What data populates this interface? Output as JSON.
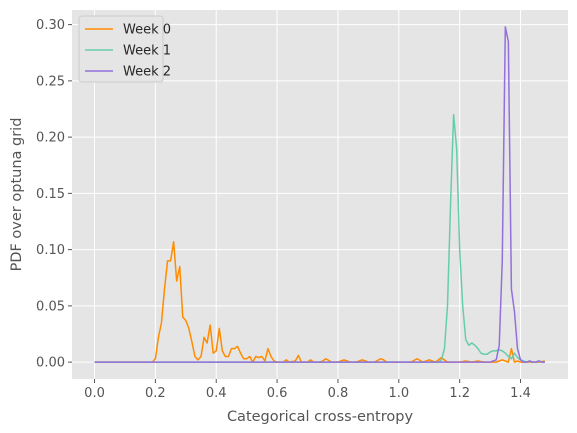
{
  "chart_data": {
    "type": "line",
    "title": "",
    "xlabel": "Categorical cross-entropy",
    "ylabel": "PDF over optuna grid",
    "xlim": [
      -0.074,
      1.556
    ],
    "ylim": [
      -0.015,
      0.313
    ],
    "xticks": [
      "0.0",
      "0.2",
      "0.4",
      "0.6",
      "0.8",
      "1.0",
      "1.2",
      "1.4"
    ],
    "yticks": [
      "0.00",
      "0.05",
      "0.10",
      "0.15",
      "0.20",
      "0.25",
      "0.30"
    ],
    "grid": true,
    "legend_position": "top-left",
    "background": "#e5e5e5",
    "series": [
      {
        "name": "Week 0",
        "color": "#ff8c00",
        "x": [
          0.0,
          0.19,
          0.2,
          0.21,
          0.22,
          0.23,
          0.24,
          0.25,
          0.26,
          0.27,
          0.28,
          0.29,
          0.3,
          0.31,
          0.32,
          0.33,
          0.34,
          0.35,
          0.36,
          0.37,
          0.38,
          0.39,
          0.4,
          0.41,
          0.42,
          0.43,
          0.44,
          0.45,
          0.46,
          0.47,
          0.48,
          0.49,
          0.5,
          0.51,
          0.52,
          0.53,
          0.54,
          0.55,
          0.56,
          0.57,
          0.58,
          0.59,
          0.6,
          0.62,
          0.63,
          0.64,
          0.66,
          0.67,
          0.68,
          0.7,
          0.71,
          0.72,
          0.74,
          0.75,
          0.76,
          0.78,
          0.8,
          0.82,
          0.84,
          0.86,
          0.88,
          0.9,
          0.92,
          0.94,
          0.95,
          0.96,
          0.98,
          1.0,
          1.02,
          1.04,
          1.06,
          1.08,
          1.1,
          1.12,
          1.14,
          1.16,
          1.18,
          1.2,
          1.22,
          1.24,
          1.26,
          1.28,
          1.3,
          1.32,
          1.34,
          1.35,
          1.36,
          1.37,
          1.38,
          1.39,
          1.4,
          1.42,
          1.44,
          1.46,
          1.48
        ],
        "values": [
          0.0,
          0.0,
          0.003,
          0.022,
          0.035,
          0.065,
          0.09,
          0.09,
          0.107,
          0.072,
          0.085,
          0.04,
          0.037,
          0.03,
          0.018,
          0.005,
          0.002,
          0.005,
          0.022,
          0.017,
          0.033,
          0.008,
          0.01,
          0.03,
          0.01,
          0.005,
          0.005,
          0.012,
          0.012,
          0.014,
          0.008,
          0.003,
          0.003,
          0.005,
          0.0,
          0.005,
          0.004,
          0.005,
          0.001,
          0.012,
          0.005,
          0.001,
          0.0,
          0.0,
          0.002,
          0.0,
          0.001,
          0.006,
          0.0,
          0.0,
          0.002,
          0.0,
          0.0,
          0.001,
          0.003,
          0.0,
          0.0,
          0.002,
          0.0,
          0.0,
          0.002,
          0.0,
          0.0,
          0.003,
          0.002,
          0.0,
          0.0,
          0.0,
          0.0,
          0.0,
          0.003,
          0.0,
          0.002,
          0.0,
          0.004,
          0.0,
          0.0,
          0.0,
          0.001,
          0.0,
          0.001,
          0.0,
          0.0,
          0.0,
          0.002,
          0.001,
          0.0,
          0.012,
          0.0,
          0.001,
          0.0,
          0.0,
          0.0,
          0.0,
          0.001
        ]
      },
      {
        "name": "Week 1",
        "color": "#66cdaa",
        "x": [
          0.0,
          1.13,
          1.14,
          1.15,
          1.16,
          1.17,
          1.18,
          1.19,
          1.2,
          1.21,
          1.22,
          1.23,
          1.24,
          1.25,
          1.26,
          1.27,
          1.28,
          1.29,
          1.3,
          1.31,
          1.32,
          1.33,
          1.34,
          1.35,
          1.36,
          1.37,
          1.38,
          1.39,
          1.4,
          1.41,
          1.42,
          1.43,
          1.44,
          1.45,
          1.46,
          1.47,
          1.48
        ],
        "values": [
          0.0,
          0.0,
          0.002,
          0.012,
          0.05,
          0.14,
          0.22,
          0.19,
          0.1,
          0.05,
          0.02,
          0.015,
          0.017,
          0.015,
          0.012,
          0.008,
          0.007,
          0.007,
          0.009,
          0.01,
          0.01,
          0.011,
          0.01,
          0.008,
          0.005,
          0.003,
          0.008,
          0.004,
          0.002,
          0.001,
          0.0,
          0.001,
          0.0,
          0.0,
          0.001,
          0.0,
          0.0
        ]
      },
      {
        "name": "Week 2",
        "color": "#9370db",
        "x": [
          0.0,
          1.3,
          1.31,
          1.32,
          1.33,
          1.34,
          1.35,
          1.36,
          1.37,
          1.38,
          1.39,
          1.4,
          1.41,
          1.42,
          1.43,
          1.44,
          1.45,
          1.46,
          1.47,
          1.48
        ],
        "values": [
          0.0,
          0.0,
          0.001,
          0.002,
          0.015,
          0.09,
          0.298,
          0.285,
          0.065,
          0.045,
          0.012,
          0.002,
          0.0,
          0.0,
          0.001,
          0.0,
          0.0,
          0.001,
          0.0,
          0.0
        ]
      }
    ]
  }
}
